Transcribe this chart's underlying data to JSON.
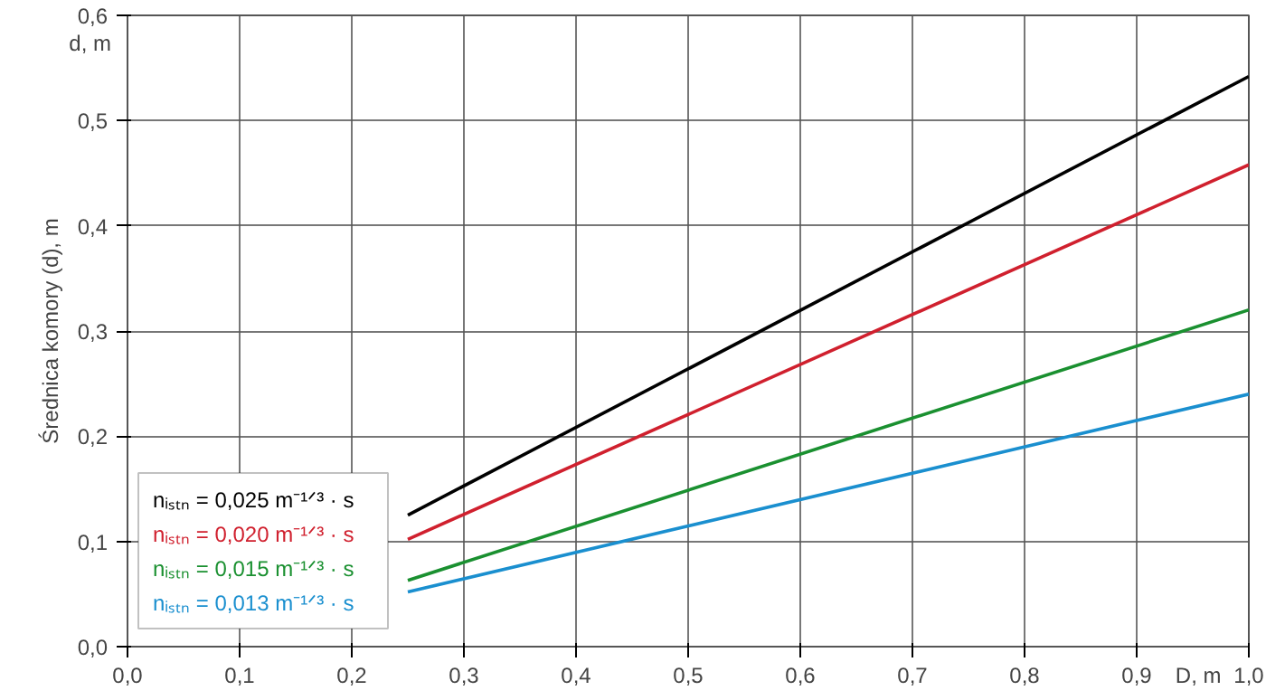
{
  "chart_data": {
    "type": "line",
    "xlabel": "D, m",
    "ylabel": "Średnica komory (d), m",
    "annotations": [
      "d, m"
    ],
    "x": [
      0.25,
      1.0
    ],
    "series": [
      {
        "name": "nᵢₛₜₙ = 0,025 m⁻¹ᐟ³ · s",
        "color": "#000000",
        "values": [
          0.125,
          0.542
        ]
      },
      {
        "name": "nᵢₛₜₙ = 0,020 m⁻¹ᐟ³ · s",
        "color": "#d0202e",
        "values": [
          0.102,
          0.458
        ]
      },
      {
        "name": "nᵢₛₜₙ = 0,015 m⁻¹ᐟ³ · s",
        "color": "#1a9030",
        "values": [
          0.063,
          0.32
        ]
      },
      {
        "name": "nᵢₛₜₙ = 0,013 m⁻¹ᐟ³ · s",
        "color": "#1a8fcf",
        "values": [
          0.052,
          0.24
        ]
      }
    ],
    "xlim": [
      0,
      1.0
    ],
    "ylim": [
      0,
      0.6
    ],
    "xticks": [
      {
        "value": 0,
        "label": "0,0"
      },
      {
        "value": 0.1,
        "label": "0,1"
      },
      {
        "value": 0.2,
        "label": "0,2"
      },
      {
        "value": 0.3,
        "label": "0,3"
      },
      {
        "value": 0.4,
        "label": "0,4"
      },
      {
        "value": 0.5,
        "label": "0,5"
      },
      {
        "value": 0.6,
        "label": "0,6"
      },
      {
        "value": 0.7,
        "label": "0,7"
      },
      {
        "value": 0.8,
        "label": "0,8"
      },
      {
        "value": 0.9,
        "label": "0,9"
      },
      {
        "value": 1.0,
        "label": "1,0"
      }
    ],
    "yticks": [
      {
        "value": 0,
        "label": "0,0"
      },
      {
        "value": 0.1,
        "label": "0,1"
      },
      {
        "value": 0.2,
        "label": "0,2"
      },
      {
        "value": 0.3,
        "label": "0,3"
      },
      {
        "value": 0.4,
        "label": "0,4"
      },
      {
        "value": 0.5,
        "label": "0,5"
      },
      {
        "value": 0.6,
        "label": "0,6"
      }
    ],
    "grid": true,
    "legend": "bottom left",
    "marker": "none",
    "line_style": "solid"
  }
}
